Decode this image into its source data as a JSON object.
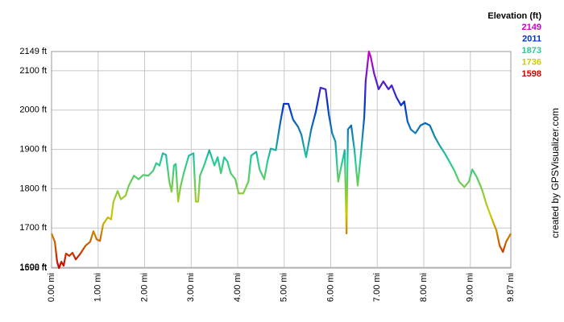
{
  "chart_data": {
    "type": "line",
    "legend": {
      "title": "Elevation (ft)",
      "items": [
        {
          "label": "2149",
          "value": 2149,
          "color": "#cc00cc"
        },
        {
          "label": "2011",
          "value": 2011,
          "color": "#0033cc"
        },
        {
          "label": "1873",
          "value": 1873,
          "color": "#22cc99"
        },
        {
          "label": "1736",
          "value": 1736,
          "color": "#cccc00"
        },
        {
          "label": "1598",
          "value": 1598,
          "color": "#cc0000"
        }
      ]
    },
    "credit": "created by GPSVisualizer.com",
    "grid": true,
    "xlim": [
      0,
      9.87
    ],
    "ylim": [
      1598,
      2149
    ],
    "xticks": [
      {
        "value": 0,
        "label": "0.00 mi"
      },
      {
        "value": 1,
        "label": "1.00 mi"
      },
      {
        "value": 2,
        "label": "2.00 mi"
      },
      {
        "value": 3,
        "label": "3.00 mi"
      },
      {
        "value": 4,
        "label": "4.00 mi"
      },
      {
        "value": 5,
        "label": "5.00 mi"
      },
      {
        "value": 6,
        "label": "6.00 mi"
      },
      {
        "value": 7,
        "label": "7.00 mi"
      },
      {
        "value": 8,
        "label": "8.00 mi"
      },
      {
        "value": 9,
        "label": "9.00 mi"
      },
      {
        "value": 9.87,
        "label": "9.87 mi"
      }
    ],
    "yticks": [
      {
        "value": 1598,
        "label": "1598 ft"
      },
      {
        "value": 1600,
        "label": "1600 ft"
      },
      {
        "value": 1700,
        "label": "1700 ft"
      },
      {
        "value": 1800,
        "label": "1800 ft"
      },
      {
        "value": 1900,
        "label": "1900 ft"
      },
      {
        "value": 2000,
        "label": "2000 ft"
      },
      {
        "value": 2100,
        "label": "2100 ft"
      },
      {
        "value": 2149,
        "label": "2149 ft"
      }
    ],
    "x": [
      0.0,
      0.07,
      0.12,
      0.16,
      0.21,
      0.26,
      0.31,
      0.38,
      0.45,
      0.52,
      0.62,
      0.73,
      0.83,
      0.9,
      0.97,
      1.04,
      1.11,
      1.21,
      1.28,
      1.33,
      1.42,
      1.49,
      1.59,
      1.66,
      1.77,
      1.87,
      1.97,
      2.08,
      2.18,
      2.25,
      2.32,
      2.39,
      2.46,
      2.53,
      2.58,
      2.63,
      2.67,
      2.72,
      2.77,
      2.84,
      2.95,
      3.05,
      3.1,
      3.15,
      3.19,
      3.29,
      3.39,
      3.5,
      3.57,
      3.64,
      3.71,
      3.78,
      3.85,
      3.95,
      4.02,
      4.12,
      4.23,
      4.29,
      4.4,
      4.47,
      4.57,
      4.64,
      4.71,
      4.82,
      4.92,
      4.99,
      5.09,
      5.19,
      5.3,
      5.37,
      5.47,
      5.58,
      5.68,
      5.78,
      5.89,
      5.96,
      6.03,
      6.1,
      6.16,
      6.23,
      6.3,
      6.34,
      6.37,
      6.44,
      6.51,
      6.58,
      6.65,
      6.72,
      6.75,
      6.82,
      6.86,
      6.93,
      7.03,
      7.13,
      7.24,
      7.31,
      7.41,
      7.51,
      7.58,
      7.65,
      7.72,
      7.82,
      7.93,
      8.03,
      8.13,
      8.24,
      8.34,
      8.45,
      8.55,
      8.66,
      8.76,
      8.87,
      8.97,
      9.04,
      9.14,
      9.25,
      9.35,
      9.46,
      9.56,
      9.63,
      9.7,
      9.77,
      9.87
    ],
    "values": [
      1686,
      1665,
      1614,
      1598,
      1614,
      1604,
      1635,
      1629,
      1637,
      1620,
      1635,
      1655,
      1665,
      1692,
      1671,
      1667,
      1710,
      1727,
      1722,
      1767,
      1794,
      1773,
      1782,
      1808,
      1833,
      1824,
      1835,
      1833,
      1845,
      1865,
      1859,
      1890,
      1886,
      1818,
      1792,
      1859,
      1863,
      1767,
      1804,
      1839,
      1884,
      1890,
      1767,
      1767,
      1833,
      1863,
      1898,
      1859,
      1880,
      1839,
      1880,
      1869,
      1839,
      1824,
      1788,
      1788,
      1818,
      1884,
      1894,
      1849,
      1824,
      1869,
      1902,
      1898,
      1971,
      2016,
      2016,
      1976,
      1957,
      1937,
      1880,
      1951,
      1996,
      2057,
      2053,
      1988,
      1941,
      1920,
      1818,
      1859,
      1898,
      1686,
      1951,
      1961,
      1898,
      1808,
      1890,
      1982,
      2073,
      2149,
      2135,
      2094,
      2053,
      2073,
      2053,
      2063,
      2033,
      2012,
      2022,
      1971,
      1951,
      1941,
      1961,
      1967,
      1961,
      1931,
      1910,
      1890,
      1869,
      1845,
      1818,
      1804,
      1818,
      1849,
      1829,
      1798,
      1759,
      1724,
      1694,
      1655,
      1639,
      1665,
      1686
    ]
  }
}
